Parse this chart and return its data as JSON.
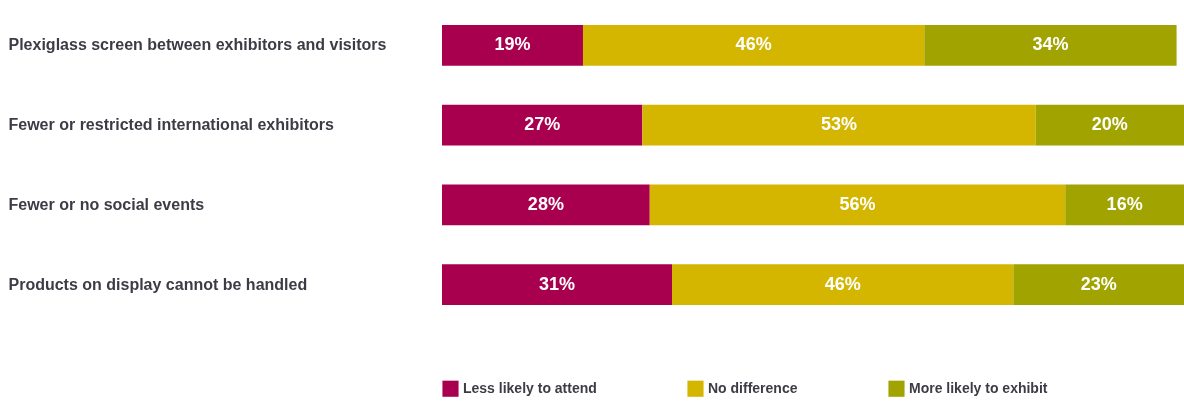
{
  "chart_data": {
    "type": "bar",
    "orientation": "horizontal",
    "stacked": true,
    "legend": "bottom",
    "categories": [
      "Plexiglass screen between exhibitors and visitors",
      "Fewer or restricted international exhibitors",
      "Fewer or no social events",
      "Products on display cannot be handled"
    ],
    "series": [
      {
        "name": "Less likely to attend",
        "color": "#a8004f",
        "values": [
          19,
          27,
          28,
          31
        ],
        "value_labels": [
          "19%",
          "27%",
          "28%",
          "31%"
        ]
      },
      {
        "name": "No difference",
        "color": "#d4b500",
        "values": [
          46,
          53,
          56,
          46
        ],
        "value_labels": [
          "46%",
          "53%",
          "56%",
          "46%"
        ]
      },
      {
        "name": "More likely to exhibit",
        "color": "#a0a300",
        "values": [
          34,
          20,
          16,
          23
        ],
        "value_labels": [
          "34%",
          "20%",
          "16%",
          "23%"
        ]
      }
    ]
  }
}
